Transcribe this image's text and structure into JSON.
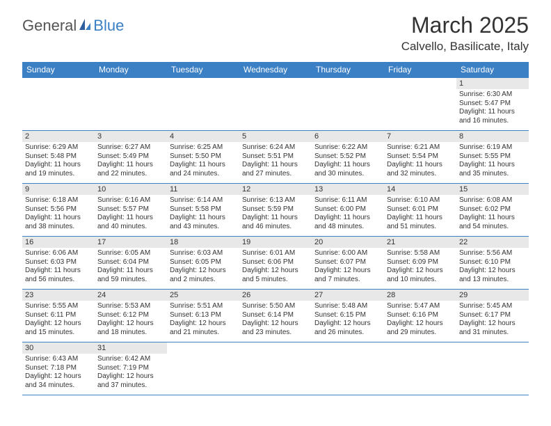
{
  "brand": {
    "text1": "General",
    "text2": "Blue"
  },
  "title": "March 2025",
  "location": "Calvello, Basilicate, Italy",
  "colors": {
    "header_bg": "#3b7fc4",
    "header_text": "#ffffff",
    "daynum_bg": "#e8e8e8",
    "border": "#3b7fc4",
    "text": "#333333",
    "brand_accent": "#3b7fc4"
  },
  "day_headers": [
    "Sunday",
    "Monday",
    "Tuesday",
    "Wednesday",
    "Thursday",
    "Friday",
    "Saturday"
  ],
  "weeks": [
    [
      null,
      null,
      null,
      null,
      null,
      null,
      {
        "n": "1",
        "sr": "6:30 AM",
        "ss": "5:47 PM",
        "dl": "11 hours and 16 minutes."
      }
    ],
    [
      {
        "n": "2",
        "sr": "6:29 AM",
        "ss": "5:48 PM",
        "dl": "11 hours and 19 minutes."
      },
      {
        "n": "3",
        "sr": "6:27 AM",
        "ss": "5:49 PM",
        "dl": "11 hours and 22 minutes."
      },
      {
        "n": "4",
        "sr": "6:25 AM",
        "ss": "5:50 PM",
        "dl": "11 hours and 24 minutes."
      },
      {
        "n": "5",
        "sr": "6:24 AM",
        "ss": "5:51 PM",
        "dl": "11 hours and 27 minutes."
      },
      {
        "n": "6",
        "sr": "6:22 AM",
        "ss": "5:52 PM",
        "dl": "11 hours and 30 minutes."
      },
      {
        "n": "7",
        "sr": "6:21 AM",
        "ss": "5:54 PM",
        "dl": "11 hours and 32 minutes."
      },
      {
        "n": "8",
        "sr": "6:19 AM",
        "ss": "5:55 PM",
        "dl": "11 hours and 35 minutes."
      }
    ],
    [
      {
        "n": "9",
        "sr": "6:18 AM",
        "ss": "5:56 PM",
        "dl": "11 hours and 38 minutes."
      },
      {
        "n": "10",
        "sr": "6:16 AM",
        "ss": "5:57 PM",
        "dl": "11 hours and 40 minutes."
      },
      {
        "n": "11",
        "sr": "6:14 AM",
        "ss": "5:58 PM",
        "dl": "11 hours and 43 minutes."
      },
      {
        "n": "12",
        "sr": "6:13 AM",
        "ss": "5:59 PM",
        "dl": "11 hours and 46 minutes."
      },
      {
        "n": "13",
        "sr": "6:11 AM",
        "ss": "6:00 PM",
        "dl": "11 hours and 48 minutes."
      },
      {
        "n": "14",
        "sr": "6:10 AM",
        "ss": "6:01 PM",
        "dl": "11 hours and 51 minutes."
      },
      {
        "n": "15",
        "sr": "6:08 AM",
        "ss": "6:02 PM",
        "dl": "11 hours and 54 minutes."
      }
    ],
    [
      {
        "n": "16",
        "sr": "6:06 AM",
        "ss": "6:03 PM",
        "dl": "11 hours and 56 minutes."
      },
      {
        "n": "17",
        "sr": "6:05 AM",
        "ss": "6:04 PM",
        "dl": "11 hours and 59 minutes."
      },
      {
        "n": "18",
        "sr": "6:03 AM",
        "ss": "6:05 PM",
        "dl": "12 hours and 2 minutes."
      },
      {
        "n": "19",
        "sr": "6:01 AM",
        "ss": "6:06 PM",
        "dl": "12 hours and 5 minutes."
      },
      {
        "n": "20",
        "sr": "6:00 AM",
        "ss": "6:07 PM",
        "dl": "12 hours and 7 minutes."
      },
      {
        "n": "21",
        "sr": "5:58 AM",
        "ss": "6:09 PM",
        "dl": "12 hours and 10 minutes."
      },
      {
        "n": "22",
        "sr": "5:56 AM",
        "ss": "6:10 PM",
        "dl": "12 hours and 13 minutes."
      }
    ],
    [
      {
        "n": "23",
        "sr": "5:55 AM",
        "ss": "6:11 PM",
        "dl": "12 hours and 15 minutes."
      },
      {
        "n": "24",
        "sr": "5:53 AM",
        "ss": "6:12 PM",
        "dl": "12 hours and 18 minutes."
      },
      {
        "n": "25",
        "sr": "5:51 AM",
        "ss": "6:13 PM",
        "dl": "12 hours and 21 minutes."
      },
      {
        "n": "26",
        "sr": "5:50 AM",
        "ss": "6:14 PM",
        "dl": "12 hours and 23 minutes."
      },
      {
        "n": "27",
        "sr": "5:48 AM",
        "ss": "6:15 PM",
        "dl": "12 hours and 26 minutes."
      },
      {
        "n": "28",
        "sr": "5:47 AM",
        "ss": "6:16 PM",
        "dl": "12 hours and 29 minutes."
      },
      {
        "n": "29",
        "sr": "5:45 AM",
        "ss": "6:17 PM",
        "dl": "12 hours and 31 minutes."
      }
    ],
    [
      {
        "n": "30",
        "sr": "6:43 AM",
        "ss": "7:18 PM",
        "dl": "12 hours and 34 minutes."
      },
      {
        "n": "31",
        "sr": "6:42 AM",
        "ss": "7:19 PM",
        "dl": "12 hours and 37 minutes."
      },
      null,
      null,
      null,
      null,
      null
    ]
  ],
  "labels": {
    "sunrise": "Sunrise:",
    "sunset": "Sunset:",
    "daylight": "Daylight:"
  }
}
